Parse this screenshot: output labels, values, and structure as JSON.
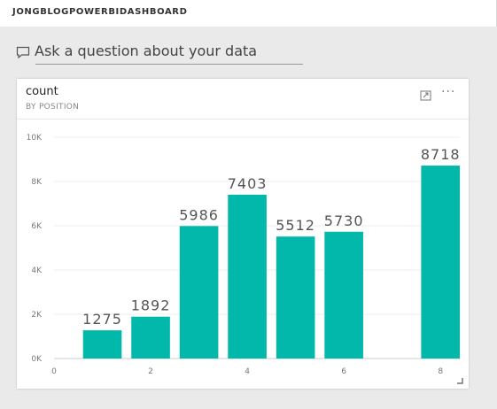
{
  "dashboard": {
    "title": "JONGBLOGPOWERBIDASHBOARD"
  },
  "qa": {
    "icon": "chat-bubble-icon",
    "placeholder": "Ask a question about your data"
  },
  "tile": {
    "title": "count",
    "subtitle": "BY POSITION",
    "focus_icon": "focus-mode-icon",
    "more_icon": "more-options-icon",
    "more_text": "···",
    "resize_icon": "resize-handle-icon"
  },
  "colors": {
    "bar": "#01b8aa",
    "background": "#eaeaea"
  },
  "chart_data": {
    "type": "bar",
    "x": [
      1,
      2,
      3,
      4,
      5,
      6,
      8
    ],
    "values": [
      1275,
      1892,
      5986,
      7403,
      5512,
      5730,
      8718
    ],
    "x_ticks": [
      0,
      2,
      4,
      6,
      8
    ],
    "y_ticks": [
      "0K",
      "2K",
      "4K",
      "6K",
      "8K",
      "10K"
    ],
    "y_tick_values": [
      0,
      2000,
      4000,
      6000,
      8000,
      10000
    ],
    "xlim": [
      0,
      8.4
    ],
    "ylim": [
      0,
      10000
    ],
    "grid": true,
    "data_labels": true
  }
}
